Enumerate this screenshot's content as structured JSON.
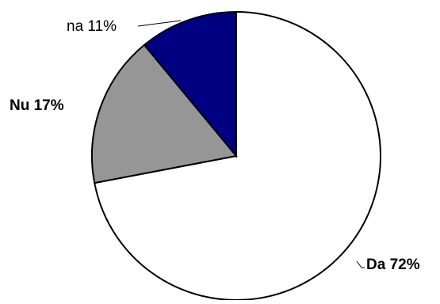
{
  "chart_data": {
    "type": "pie",
    "title": "",
    "start_angle_deg": 90,
    "direction": "clockwise",
    "slices": [
      {
        "label": "Da 72%",
        "value": 72,
        "color": "#ffffff",
        "label_bold": true,
        "label_side": "bottom-right"
      },
      {
        "label": "Nu 17%",
        "value": 17,
        "color": "#969696",
        "label_bold": true,
        "label_side": "left"
      },
      {
        "label": "na 11%",
        "value": 11,
        "color": "#000080",
        "label_bold": false,
        "label_side": "top-left"
      }
    ],
    "stroke_color": "#000000",
    "legend": "none"
  }
}
